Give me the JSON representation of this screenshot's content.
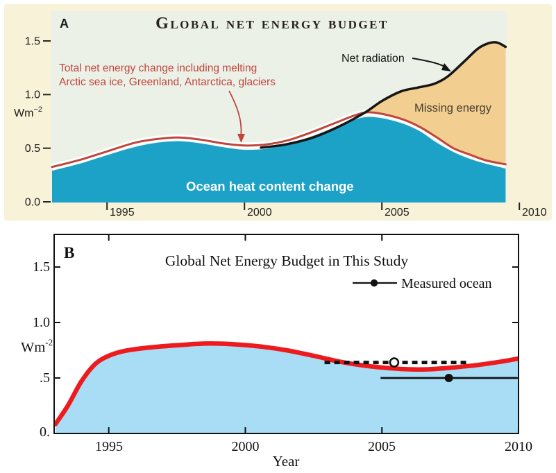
{
  "figure": {
    "panel_a": {
      "panel_label": "A",
      "title": "Global net energy budget",
      "y_unit_base": "Wm",
      "y_unit_exp": "−2",
      "y_tick_labels": [
        "1.5",
        "1.0",
        "0.5",
        "0.0"
      ],
      "x_tick_labels": [
        "1995",
        "2000",
        "2005",
        "2010"
      ],
      "annotations": {
        "total_line1": "Total net energy change including melting",
        "total_line2": "Arctic sea ice, Greenland, Antarctica, glaciers",
        "net_radiation": "Net radiation",
        "missing_energy": "Missing energy",
        "ocean": "Ocean heat content change"
      },
      "colors": {
        "background": "#f8f2d9",
        "plot_bg": "#ecf1e8",
        "ocean_fill": "#1ca1c7",
        "missing_fill": "#f2ce90",
        "total_line": "#c0453b",
        "net_radiation_line": "#161616",
        "gap_casing": "#ffffff",
        "tick": "#222222"
      }
    },
    "panel_b": {
      "panel_label": "B",
      "title": "Global Net Energy Budget in This Study",
      "legend": {
        "label": "Measured ocean"
      },
      "y_unit_base": "Wm",
      "y_unit_exp": "-2",
      "y_tick_labels": [
        "1.5",
        "1.0",
        ".5",
        "0."
      ],
      "x_tick_labels": [
        "1995",
        "2000",
        "2005",
        "2010"
      ],
      "x_axis_label": "Year",
      "colors": {
        "net_energy_line": "#ee1b1e",
        "ocean_fill": "#a9dcf5",
        "frame": "#111111"
      }
    }
  },
  "chart_data": [
    {
      "panel": "A",
      "type": "area",
      "title": "Global net energy budget",
      "xlabel": "",
      "ylabel": "Wm−2",
      "xlim": [
        1993,
        2010
      ],
      "ylim": [
        0,
        1.75
      ],
      "grid": false,
      "x_ticks": [
        1995,
        2000,
        2005,
        2010
      ],
      "y_ticks": [
        0.0,
        0.5,
        1.0,
        1.5
      ],
      "series": [
        {
          "name": "Ocean heat content change",
          "type": "area",
          "points": [
            [
              1993,
              0.29
            ],
            [
              1994,
              0.355
            ],
            [
              1995,
              0.435
            ],
            [
              1996,
              0.51
            ],
            [
              1996.8,
              0.55
            ],
            [
              1997.6,
              0.565
            ],
            [
              1998.4,
              0.545
            ],
            [
              1999.2,
              0.51
            ],
            [
              2000,
              0.485
            ],
            [
              2000.8,
              0.495
            ],
            [
              2001.6,
              0.54
            ],
            [
              2002.4,
              0.605
            ],
            [
              2003.2,
              0.685
            ],
            [
              2004,
              0.765
            ],
            [
              2004.5,
              0.79
            ],
            [
              2005.1,
              0.775
            ],
            [
              2005.8,
              0.725
            ],
            [
              2006.4,
              0.655
            ],
            [
              2007,
              0.55
            ],
            [
              2007.6,
              0.465
            ],
            [
              2008.2,
              0.4
            ],
            [
              2008.8,
              0.355
            ],
            [
              2009.5,
              0.31
            ]
          ]
        },
        {
          "name": "Total net energy change including melting Arctic sea ice, Greenland, Antarctica, glaciers",
          "type": "line",
          "points": [
            [
              1993,
              0.325
            ],
            [
              1994,
              0.39
            ],
            [
              1995,
              0.47
            ],
            [
              1996,
              0.55
            ],
            [
              1996.8,
              0.585
            ],
            [
              1997.6,
              0.6
            ],
            [
              1998.4,
              0.58
            ],
            [
              1999.2,
              0.545
            ],
            [
              2000,
              0.525
            ],
            [
              2000.8,
              0.535
            ],
            [
              2001.6,
              0.575
            ],
            [
              2002.4,
              0.645
            ],
            [
              2003.2,
              0.725
            ],
            [
              2004,
              0.805
            ],
            [
              2004.5,
              0.835
            ],
            [
              2005.1,
              0.815
            ],
            [
              2005.8,
              0.765
            ],
            [
              2006.4,
              0.695
            ],
            [
              2007,
              0.6
            ],
            [
              2007.6,
              0.5
            ],
            [
              2008.2,
              0.44
            ],
            [
              2008.8,
              0.385
            ],
            [
              2009.5,
              0.35
            ]
          ]
        },
        {
          "name": "Net radiation",
          "type": "line",
          "points": [
            [
              2000.6,
              0.505
            ],
            [
              2001.5,
              0.535
            ],
            [
              2002.5,
              0.6
            ],
            [
              2003.5,
              0.71
            ],
            [
              2004.4,
              0.835
            ],
            [
              2005,
              0.94
            ],
            [
              2005.7,
              1.03
            ],
            [
              2006.3,
              1.065
            ],
            [
              2006.9,
              1.1
            ],
            [
              2007.4,
              1.17
            ],
            [
              2008,
              1.31
            ],
            [
              2008.5,
              1.43
            ],
            [
              2008.9,
              1.48
            ],
            [
              2009.2,
              1.485
            ],
            [
              2009.5,
              1.445
            ]
          ]
        },
        {
          "name": "Missing energy",
          "type": "area-between",
          "upper": "Net radiation",
          "lower": "Total net energy change including melting Arctic sea ice, Greenland, Antarctica, glaciers",
          "from_x": 2004.4
        }
      ]
    },
    {
      "panel": "B",
      "type": "area",
      "title": "Global Net Energy Budget in This Study",
      "xlabel": "Year",
      "ylabel": "Wm-2",
      "xlim": [
        1993,
        2010
      ],
      "ylim": [
        0,
        1.79
      ],
      "grid": false,
      "legend_position": "top-right",
      "x_ticks": [
        1995,
        2000,
        2005,
        2010
      ],
      "y_ticks": [
        0.5,
        1.0,
        1.5
      ],
      "series": [
        {
          "name": "Net energy budget (this study)",
          "type": "line+area",
          "points": [
            [
              1993.05,
              0.085
            ],
            [
              1993.5,
              0.25
            ],
            [
              1994,
              0.47
            ],
            [
              1994.5,
              0.625
            ],
            [
              1995,
              0.7
            ],
            [
              1995.6,
              0.745
            ],
            [
              1996.5,
              0.775
            ],
            [
              1997.5,
              0.795
            ],
            [
              1998.5,
              0.81
            ],
            [
              1999.5,
              0.805
            ],
            [
              2000.5,
              0.785
            ],
            [
              2001.5,
              0.75
            ],
            [
              2002.5,
              0.7
            ],
            [
              2003.5,
              0.645
            ],
            [
              2004.5,
              0.607
            ],
            [
              2005.3,
              0.588
            ],
            [
              2006,
              0.578
            ],
            [
              2006.7,
              0.578
            ],
            [
              2007.5,
              0.592
            ],
            [
              2008.5,
              0.617
            ],
            [
              2009.3,
              0.645
            ],
            [
              2010,
              0.675
            ]
          ]
        },
        {
          "name": "Measured ocean (dashed estimate)",
          "type": "hline",
          "style": "dashed",
          "y": 0.64,
          "x_start": 2002.9,
          "x_end": 2008.1,
          "marker": "open-circle",
          "marker_x": 2005.45
        },
        {
          "name": "Measured ocean",
          "type": "hline",
          "style": "solid",
          "y": 0.5,
          "x_start": 2004.95,
          "x_end": 2009.95,
          "marker": "filled-circle",
          "marker_x": 2007.45
        }
      ]
    }
  ]
}
